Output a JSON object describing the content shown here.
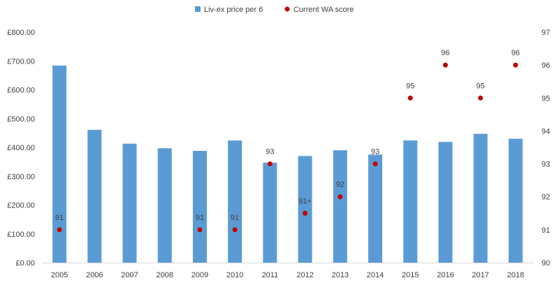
{
  "chart_data": {
    "type": "bar",
    "categories": [
      "2005",
      "2006",
      "2007",
      "2008",
      "2009",
      "2010",
      "2011",
      "2012",
      "2013",
      "2014",
      "2015",
      "2016",
      "2017",
      "2018"
    ],
    "series": [
      {
        "name": "Liv-ex price per 6",
        "type": "bar",
        "axis": "left",
        "color": "#5b9bd5",
        "values": [
          684,
          461,
          413,
          397,
          388,
          424,
          347,
          370,
          390,
          375,
          424,
          419,
          447,
          430
        ]
      },
      {
        "name": "Current WA score",
        "type": "scatter",
        "axis": "right",
        "color": "#c00000",
        "values": [
          91,
          null,
          null,
          null,
          91,
          91,
          93,
          91.5,
          92,
          93,
          95,
          96,
          95,
          96
        ],
        "labels": [
          "91",
          "",
          "",
          "",
          "91",
          "91",
          "93",
          "91+",
          "92",
          "93",
          "95",
          "96",
          "95",
          "96"
        ]
      }
    ],
    "left_axis": {
      "min": 0,
      "max": 800,
      "step": 100,
      "ticks": [
        "£0.00",
        "£100.00",
        "£200.00",
        "£300.00",
        "£400.00",
        "£500.00",
        "£600.00",
        "£700.00",
        "£800.00"
      ]
    },
    "right_axis": {
      "min": 90,
      "max": 97,
      "step": 1,
      "ticks": [
        "90",
        "91",
        "92",
        "93",
        "94",
        "95",
        "96",
        "97"
      ]
    },
    "grid": false,
    "legend_position": "top"
  }
}
